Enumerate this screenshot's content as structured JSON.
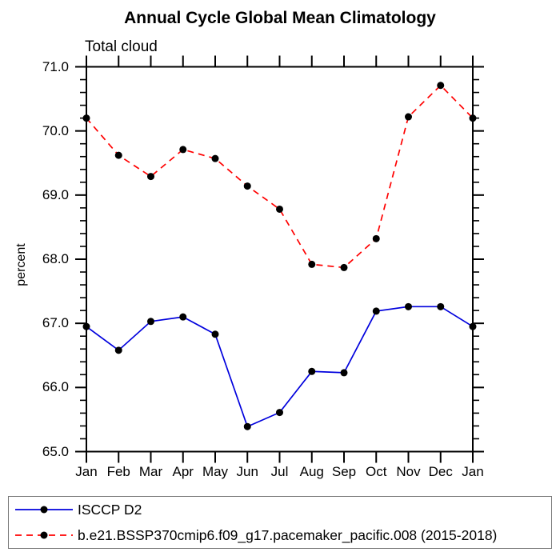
{
  "chart_data": {
    "type": "line",
    "title": "Annual Cycle Global Mean Climatology",
    "subtitle": "Total cloud",
    "ylabel": "percent",
    "categories": [
      "Jan",
      "Feb",
      "Mar",
      "Apr",
      "May",
      "Jun",
      "Jul",
      "Aug",
      "Sep",
      "Oct",
      "Nov",
      "Dec",
      "Jan"
    ],
    "ylim": [
      65.0,
      71.0
    ],
    "ytick_major_step": 1.0,
    "ytick_minor_step": 0.2,
    "grid": false,
    "legend_position": "bottom-left-box",
    "series": [
      {
        "name": "ISCCP D2",
        "color": "#0000dd",
        "line_style": "solid",
        "marker": "filled-circle",
        "marker_color": "#000000",
        "values": [
          66.95,
          66.58,
          67.03,
          67.1,
          66.83,
          65.39,
          65.61,
          66.25,
          66.23,
          67.19,
          67.26,
          67.26,
          66.95
        ]
      },
      {
        "name": "b.e21.BSSP370cmip6.f09_g17.pacemaker_pacific.008 (2015-2018)",
        "color": "#ff0000",
        "line_style": "dashed",
        "marker": "filled-circle",
        "marker_color": "#000000",
        "values": [
          70.2,
          69.62,
          69.29,
          69.71,
          69.57,
          69.14,
          68.78,
          67.92,
          67.87,
          68.32,
          70.22,
          70.71,
          70.2
        ]
      }
    ]
  },
  "style": {
    "axis_color": "#000000",
    "legend_border_color": "#777777",
    "background": "#ffffff"
  }
}
